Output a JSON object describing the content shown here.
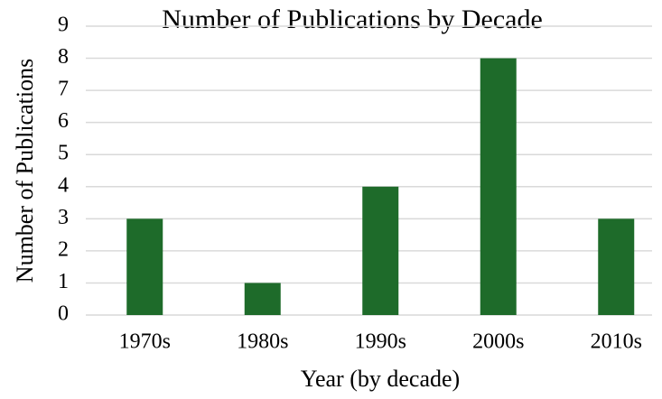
{
  "chart_data": {
    "type": "bar",
    "title": "Number of Publications by Decade",
    "x_label": "Year (by decade)",
    "y_label": "Number of Publications",
    "categories": [
      "1970s",
      "1980s",
      "1990s",
      "2000s",
      "2010s"
    ],
    "values": [
      3,
      1,
      4,
      8,
      3
    ],
    "color": "#1e6b2a",
    "ylim": [
      0,
      9
    ],
    "yticks": [
      0,
      1,
      2,
      3,
      4,
      5,
      6,
      7,
      8,
      9
    ],
    "grid": true
  }
}
